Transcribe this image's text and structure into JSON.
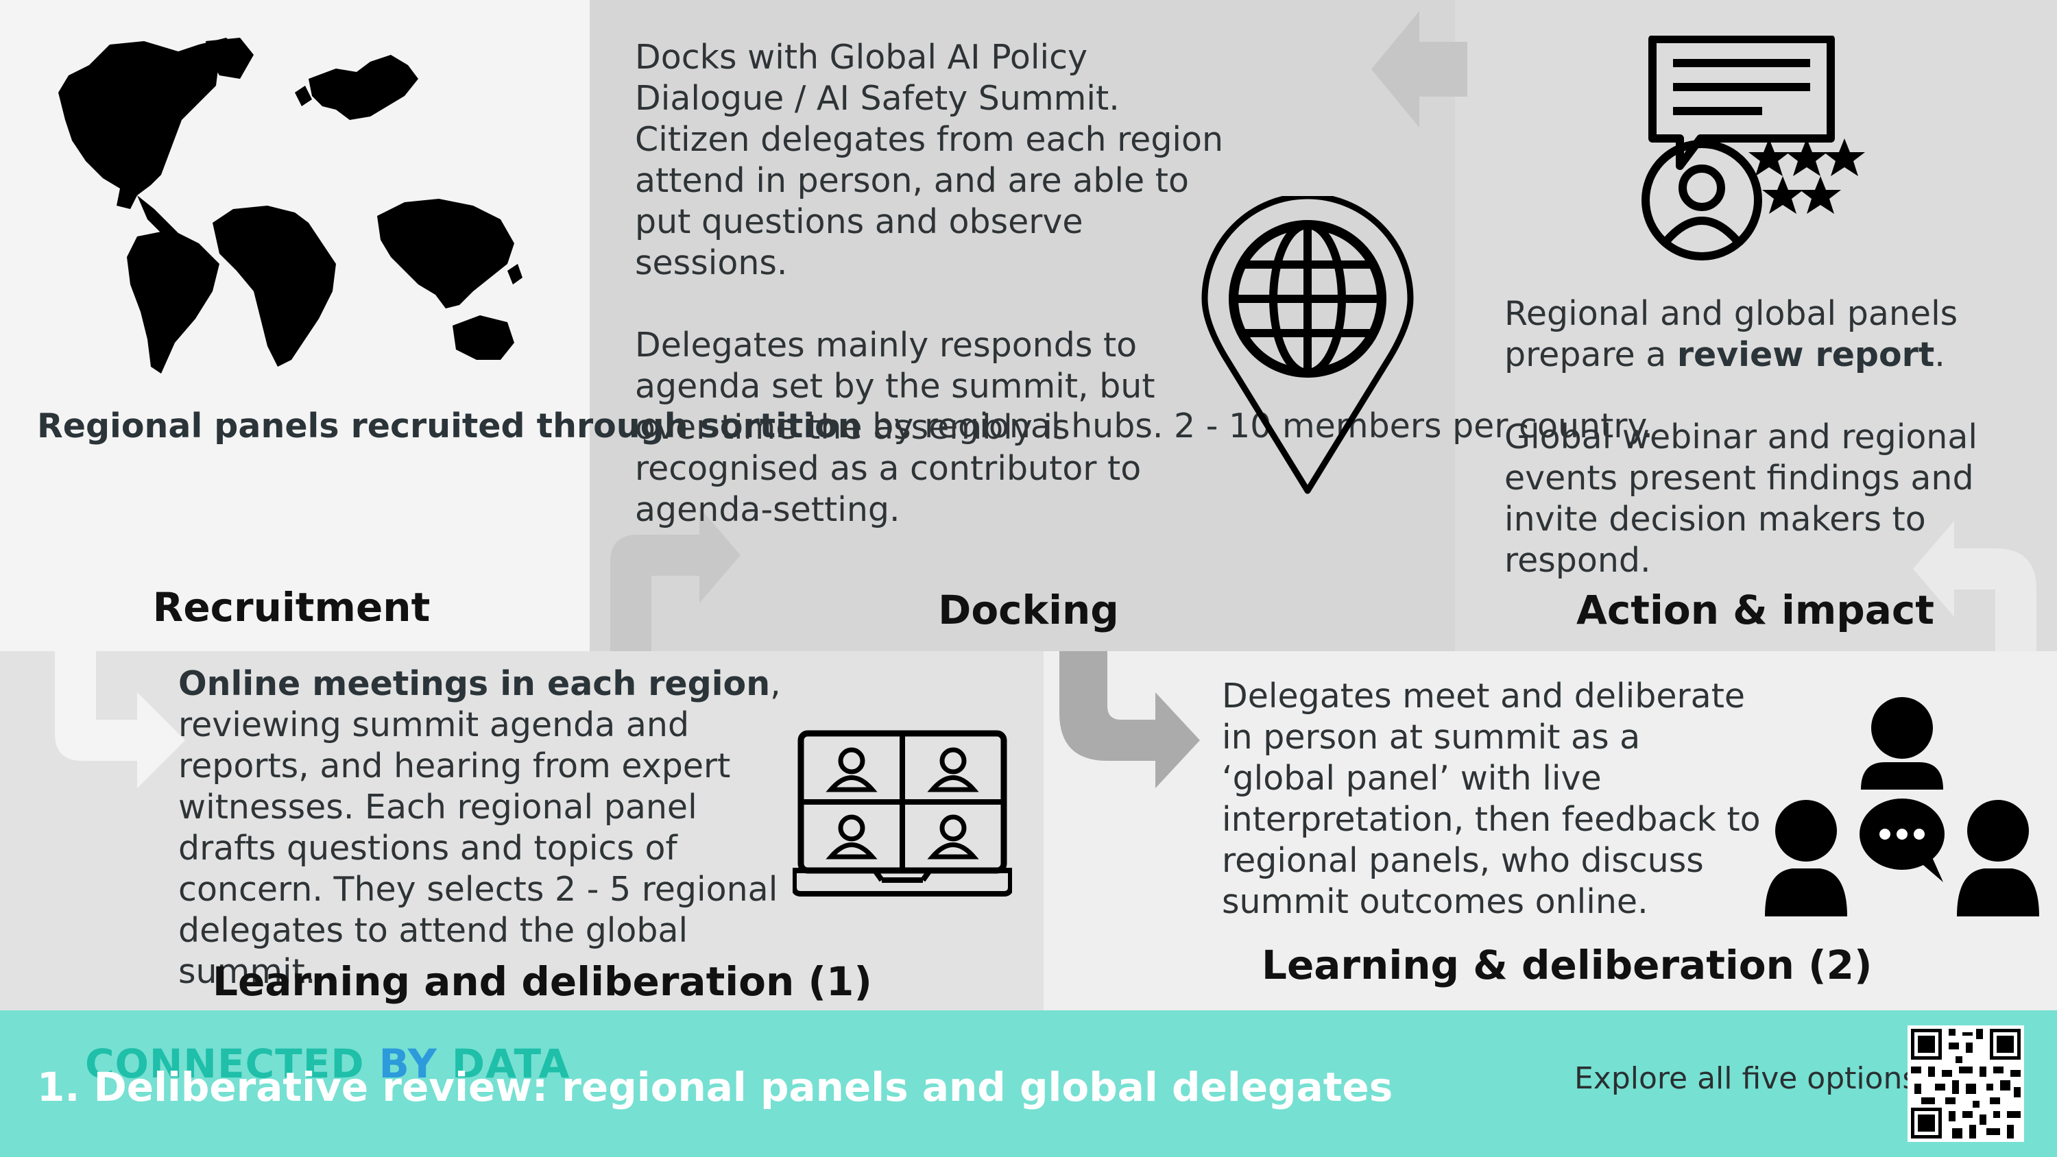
{
  "recruitment": {
    "bold_text": "Regional panels recruited through sortition",
    "text_rest": " by regional hubs. 2 - 10 members per country.",
    "heading": "Recruitment",
    "icon": "world-map-icon"
  },
  "docking": {
    "paragraph1": "Docks with Global AI Policy Dialogue / AI Safety Summit. Citizen delegates from each region attend in person, and are able to put questions and observe sessions.",
    "paragraph2": "Delegates mainly responds to agenda set by the summit, but over time the assembly is recognised as a contributor to agenda-setting.",
    "heading": "Docking",
    "icon": "globe-location-pin-icon"
  },
  "action_impact": {
    "p1_before": "Regional and global panels prepare a ",
    "p1_bold": "review report",
    "p1_after": ".",
    "paragraph2": "Global webinar and regional events present findings and invite decision makers to respond.",
    "heading": "Action & impact",
    "icon": "review-feedback-icon"
  },
  "learning1": {
    "bold_text": "Online meetings in each region",
    "text_rest": ", reviewing summit agenda and reports, and hearing from expert witnesses. Each regional panel drafts questions and topics of concern. They selects 2 - 5 regional delegates to attend the global summit.",
    "heading": "Learning and deliberation (1)",
    "icon": "video-conference-icon"
  },
  "learning2": {
    "text": "Delegates meet and deliberate in person at summit as a ‘global panel’ with live interpretation, then feedback to regional panels, who discuss summit outcomes online.",
    "heading": "Learning & deliberation (2)",
    "icon": "group-discussion-icon"
  },
  "footer": {
    "brand_part1": "CONNECTED",
    "brand_part2": "BY",
    "brand_part3": "DATA",
    "title": "1. Deliberative review: regional panels and global delegates",
    "explore_label": "Explore all five options:",
    "qr_icon": "qr-code-icon"
  },
  "colors": {
    "footer_bg": "#76e0d2",
    "brand_teal": "#1fbfa9",
    "brand_blue": "#2c9adb",
    "panel_light": "#f4f4f4",
    "panel_mid": "#d6d6d6",
    "panel_soft": "#e2e2e2"
  }
}
